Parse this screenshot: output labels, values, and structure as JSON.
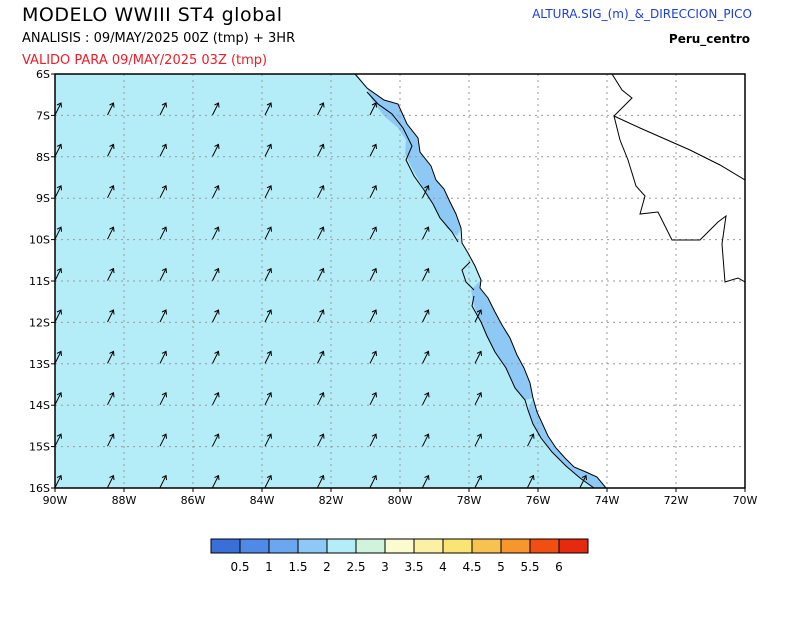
{
  "header": {
    "title": "MODELO  WWIII  ST4  global",
    "analysis": "ANALISIS : 09/MAY/2025 00Z   (tmp) + 3HR",
    "valid": "VALIDO PARA   09/MAY/2025 03Z   (tmp)",
    "variable": "ALTURA.SIG_(m)_&_DIRECCION_PICO",
    "region": "Peru_centro"
  },
  "map": {
    "lon_range": [
      -90,
      -70
    ],
    "lat_range": [
      -16,
      -6
    ],
    "lon_labels": [
      "90W",
      "88W",
      "86W",
      "84W",
      "82W",
      "80W",
      "78W",
      "76W",
      "74W",
      "72W",
      "70W"
    ],
    "lat_labels": [
      "6S",
      "7S",
      "8S",
      "9S",
      "10S",
      "11S",
      "12S",
      "13S",
      "14S",
      "15S",
      "16S"
    ],
    "gridlines": true,
    "ocean_wave_height_m": 2.25,
    "near_coast_wave_height_m": 1.75,
    "land_color": "#ffffff",
    "peak_direction": "from SW toward NE"
  },
  "colorbar": {
    "labels": [
      "0.5",
      "1",
      "1.5",
      "2",
      "2.5",
      "3",
      "3.5",
      "4",
      "4.5",
      "5",
      "5.5",
      "6"
    ],
    "colors": [
      "#3a6fd9",
      "#4f8ae8",
      "#6aa7f0",
      "#8ec8f5",
      "#b4ecf8",
      "#cff3dc",
      "#fbfbd0",
      "#fbf0a4",
      "#fae474",
      "#f7c250",
      "#f6962c",
      "#f24e12",
      "#e52a10"
    ]
  }
}
